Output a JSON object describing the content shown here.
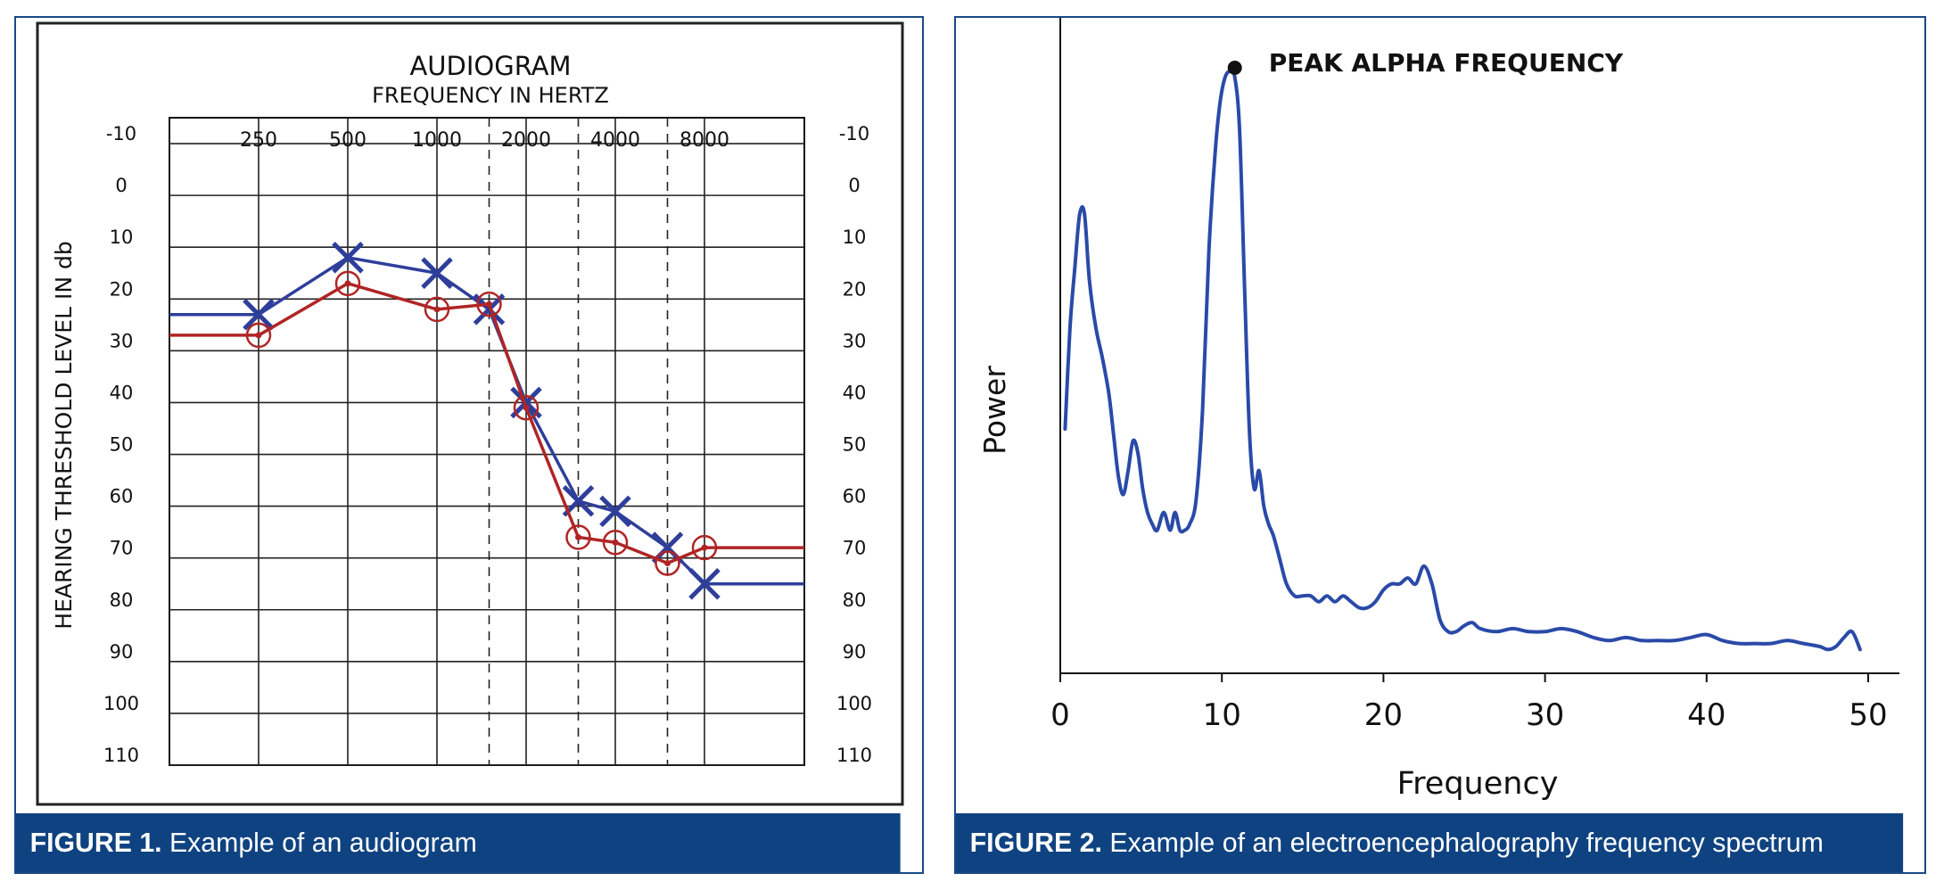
{
  "figure1": {
    "caption_label": "FIGURE 1.",
    "caption_text": "Example of an audiogram"
  },
  "figure2": {
    "caption_label": "FIGURE 2.",
    "caption_text": "Example of an electroencephalography frequency spectrum"
  },
  "colors": {
    "frame_blue": "#1a4a86",
    "caption_blue": "#0f4280",
    "left_ear_blue": "#2e3e9b",
    "right_ear_red": "#b02525",
    "eeg_line": "#2a4aa8"
  },
  "chart_data": [
    {
      "type": "line",
      "title": "AUDIOGRAM",
      "subtitle": "FREQUENCY IN HERTZ",
      "ylabel": "HEARING THRESHOLD LEVEL IN db",
      "xlabel": "",
      "categories": [
        "250",
        "500",
        "1000",
        "2000",
        "4000",
        "8000"
      ],
      "x_ticks": [
        250,
        500,
        1000,
        2000,
        4000,
        8000
      ],
      "y_ticks": [
        -10,
        0,
        10,
        20,
        30,
        40,
        50,
        60,
        70,
        80,
        90,
        100,
        110
      ],
      "ylim": [
        110,
        -15
      ],
      "y_inverted": true,
      "grid": true,
      "dashed_gridlines_at": [
        1500,
        3000,
        6000
      ],
      "series": [
        {
          "marker": "x",
          "color": "#2e3e9b",
          "x": [
            250,
            500,
            1000,
            1500,
            2000,
            3000,
            4000,
            6000,
            8000
          ],
          "y": [
            23,
            12,
            15,
            22,
            40,
            59,
            61,
            68,
            75
          ],
          "extends_to_edges": true
        },
        {
          "marker": "circle",
          "color": "#b02525",
          "x": [
            250,
            500,
            1000,
            1500,
            2000,
            3000,
            4000,
            6000,
            8000
          ],
          "y": [
            27,
            17,
            22,
            21,
            41,
            66,
            67,
            71,
            68
          ],
          "extends_to_edges": true
        }
      ]
    },
    {
      "type": "line",
      "xlabel": "Frequency",
      "ylabel": "Power",
      "x_ticks": [
        0,
        10,
        20,
        30,
        40,
        50
      ],
      "xlim": [
        0,
        51
      ],
      "ylim": [
        0,
        1
      ],
      "grid": false,
      "annotations": [
        {
          "text": "PEAK ALPHA FREQUENCY",
          "x": 10.8,
          "y": 0.98
        }
      ],
      "series": [
        {
          "color": "#2a4aa8",
          "x": [
            0.3,
            0.6,
            0.9,
            1.2,
            1.5,
            1.8,
            2.2,
            2.6,
            3.0,
            3.3,
            3.6,
            3.9,
            4.2,
            4.5,
            4.8,
            5.1,
            5.4,
            5.7,
            6.0,
            6.4,
            6.8,
            7.1,
            7.4,
            7.7,
            8.0,
            8.4,
            8.8,
            9.2,
            9.6,
            9.9,
            10.2,
            10.5,
            10.8,
            11.1,
            11.4,
            11.7,
            12.0,
            12.3,
            12.6,
            12.9,
            13.2,
            13.6,
            14.0,
            14.5,
            15.0,
            15.5,
            16.0,
            16.5,
            17.0,
            17.5,
            18.0,
            18.5,
            19.0,
            19.5,
            20.0,
            20.5,
            21.0,
            21.5,
            22.0,
            22.5,
            23.0,
            23.5,
            24.0,
            24.5,
            25.0,
            25.5,
            26.0,
            27.0,
            28.0,
            29.0,
            30.0,
            31.0,
            32.0,
            33.0,
            34.0,
            35.0,
            36.0,
            37.0,
            38.0,
            39.0,
            40.0,
            41.0,
            42.0,
            43.0,
            44.0,
            45.0,
            46.0,
            47.0,
            47.5,
            48.0,
            48.5,
            49.0,
            49.5
          ],
          "y": [
            0.38,
            0.55,
            0.65,
            0.74,
            0.74,
            0.63,
            0.55,
            0.5,
            0.44,
            0.37,
            0.3,
            0.27,
            0.31,
            0.36,
            0.34,
            0.28,
            0.24,
            0.22,
            0.21,
            0.24,
            0.21,
            0.24,
            0.21,
            0.21,
            0.22,
            0.26,
            0.41,
            0.68,
            0.85,
            0.93,
            0.97,
            0.98,
            0.97,
            0.88,
            0.62,
            0.38,
            0.28,
            0.31,
            0.25,
            0.22,
            0.2,
            0.16,
            0.12,
            0.1,
            0.1,
            0.1,
            0.09,
            0.1,
            0.09,
            0.1,
            0.09,
            0.08,
            0.08,
            0.09,
            0.11,
            0.12,
            0.12,
            0.13,
            0.12,
            0.15,
            0.12,
            0.06,
            0.04,
            0.04,
            0.05,
            0.055,
            0.045,
            0.04,
            0.045,
            0.04,
            0.04,
            0.045,
            0.04,
            0.03,
            0.025,
            0.03,
            0.025,
            0.025,
            0.025,
            0.03,
            0.035,
            0.025,
            0.02,
            0.02,
            0.02,
            0.025,
            0.02,
            0.015,
            0.01,
            0.015,
            0.03,
            0.04,
            0.01
          ]
        }
      ]
    }
  ]
}
